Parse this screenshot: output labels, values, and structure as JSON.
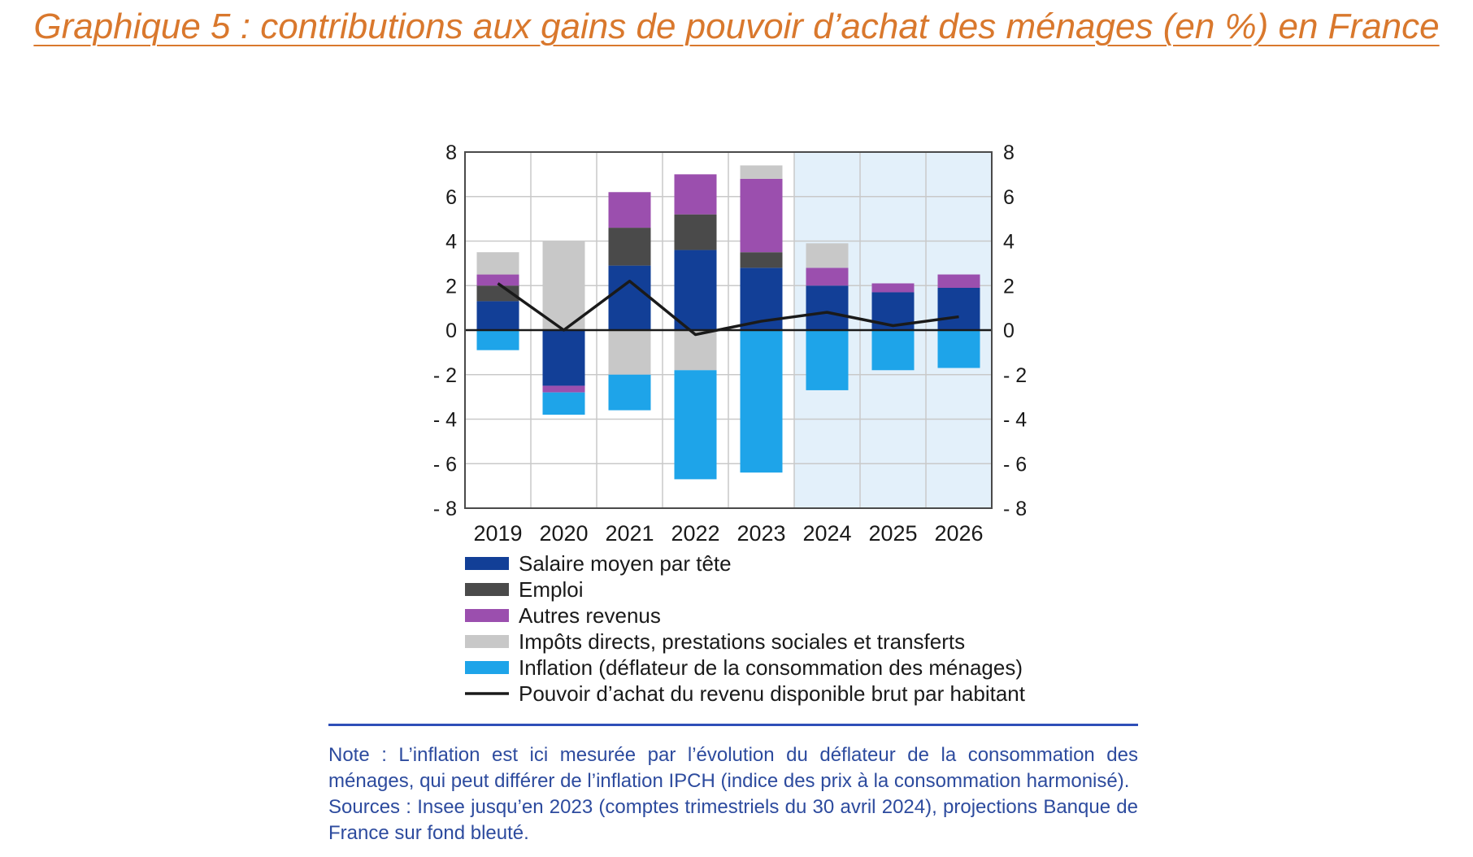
{
  "title": "Graphique 5 : contributions aux gains de pouvoir d’achat des ménages (en %) en France",
  "chart_data": {
    "type": "bar",
    "subtype": "stacked-bar-with-line",
    "categories": [
      "2019",
      "2020",
      "2021",
      "2022",
      "2023",
      "2024",
      "2025",
      "2026"
    ],
    "ylim": [
      -8,
      8
    ],
    "yticks": [
      8,
      6,
      4,
      2,
      0,
      -2,
      -4,
      -6,
      -8
    ],
    "ytick_labels": [
      "8",
      "6",
      "4",
      "2",
      "0",
      "- 2",
      "- 4",
      "- 6",
      "- 8"
    ],
    "projection_from": "2024",
    "series": [
      {
        "name": "Salaire moyen par tête",
        "kind": "bar",
        "color": "#123f97",
        "values": [
          1.3,
          -2.5,
          2.9,
          3.6,
          2.8,
          2.0,
          1.7,
          1.9
        ]
      },
      {
        "name": "Emploi",
        "kind": "bar",
        "color": "#4a4a4a",
        "values": [
          0.7,
          0.0,
          1.7,
          1.6,
          0.7,
          0.0,
          0.0,
          0.0
        ]
      },
      {
        "name": "Autres revenus",
        "kind": "bar",
        "color": "#9b4fae",
        "values": [
          0.5,
          -0.3,
          1.6,
          1.8,
          3.3,
          0.8,
          0.4,
          0.6
        ]
      },
      {
        "name": "Impôts directs, prestations sociales et transferts",
        "kind": "bar",
        "color": "#c8c8c8",
        "values": [
          1.0,
          4.0,
          -2.0,
          -1.8,
          0.6,
          1.1,
          0.0,
          0.0
        ]
      },
      {
        "name": "Inflation (déflateur de la consommation des ménages)",
        "kind": "bar",
        "color": "#1ea4e9",
        "values": [
          -0.9,
          -1.0,
          -1.6,
          -4.9,
          -6.4,
          -2.7,
          -1.8,
          -1.7
        ]
      },
      {
        "name": "Pouvoir d’achat du revenu disponible brut par habitant",
        "kind": "line",
        "color": "#1a1a1a",
        "values": [
          2.1,
          0.0,
          2.2,
          -0.2,
          0.4,
          0.8,
          0.2,
          0.6
        ]
      }
    ]
  },
  "note": {
    "line1": "Note : L’inflation est ici mesurée par l’évolution du déflateur de la consommation des ménages, qui peut différer de l’inflation IPCH (indice des prix à la consommation harmonisé).",
    "line2": "Sources : Insee jusqu’en 2023 (comptes trimestriels du 30 avril 2024), projections Banque de France sur fond bleuté."
  },
  "colors": {
    "title": "#d9782d",
    "note": "#2d4b9e",
    "projection_bg": "#e3f0fa"
  }
}
